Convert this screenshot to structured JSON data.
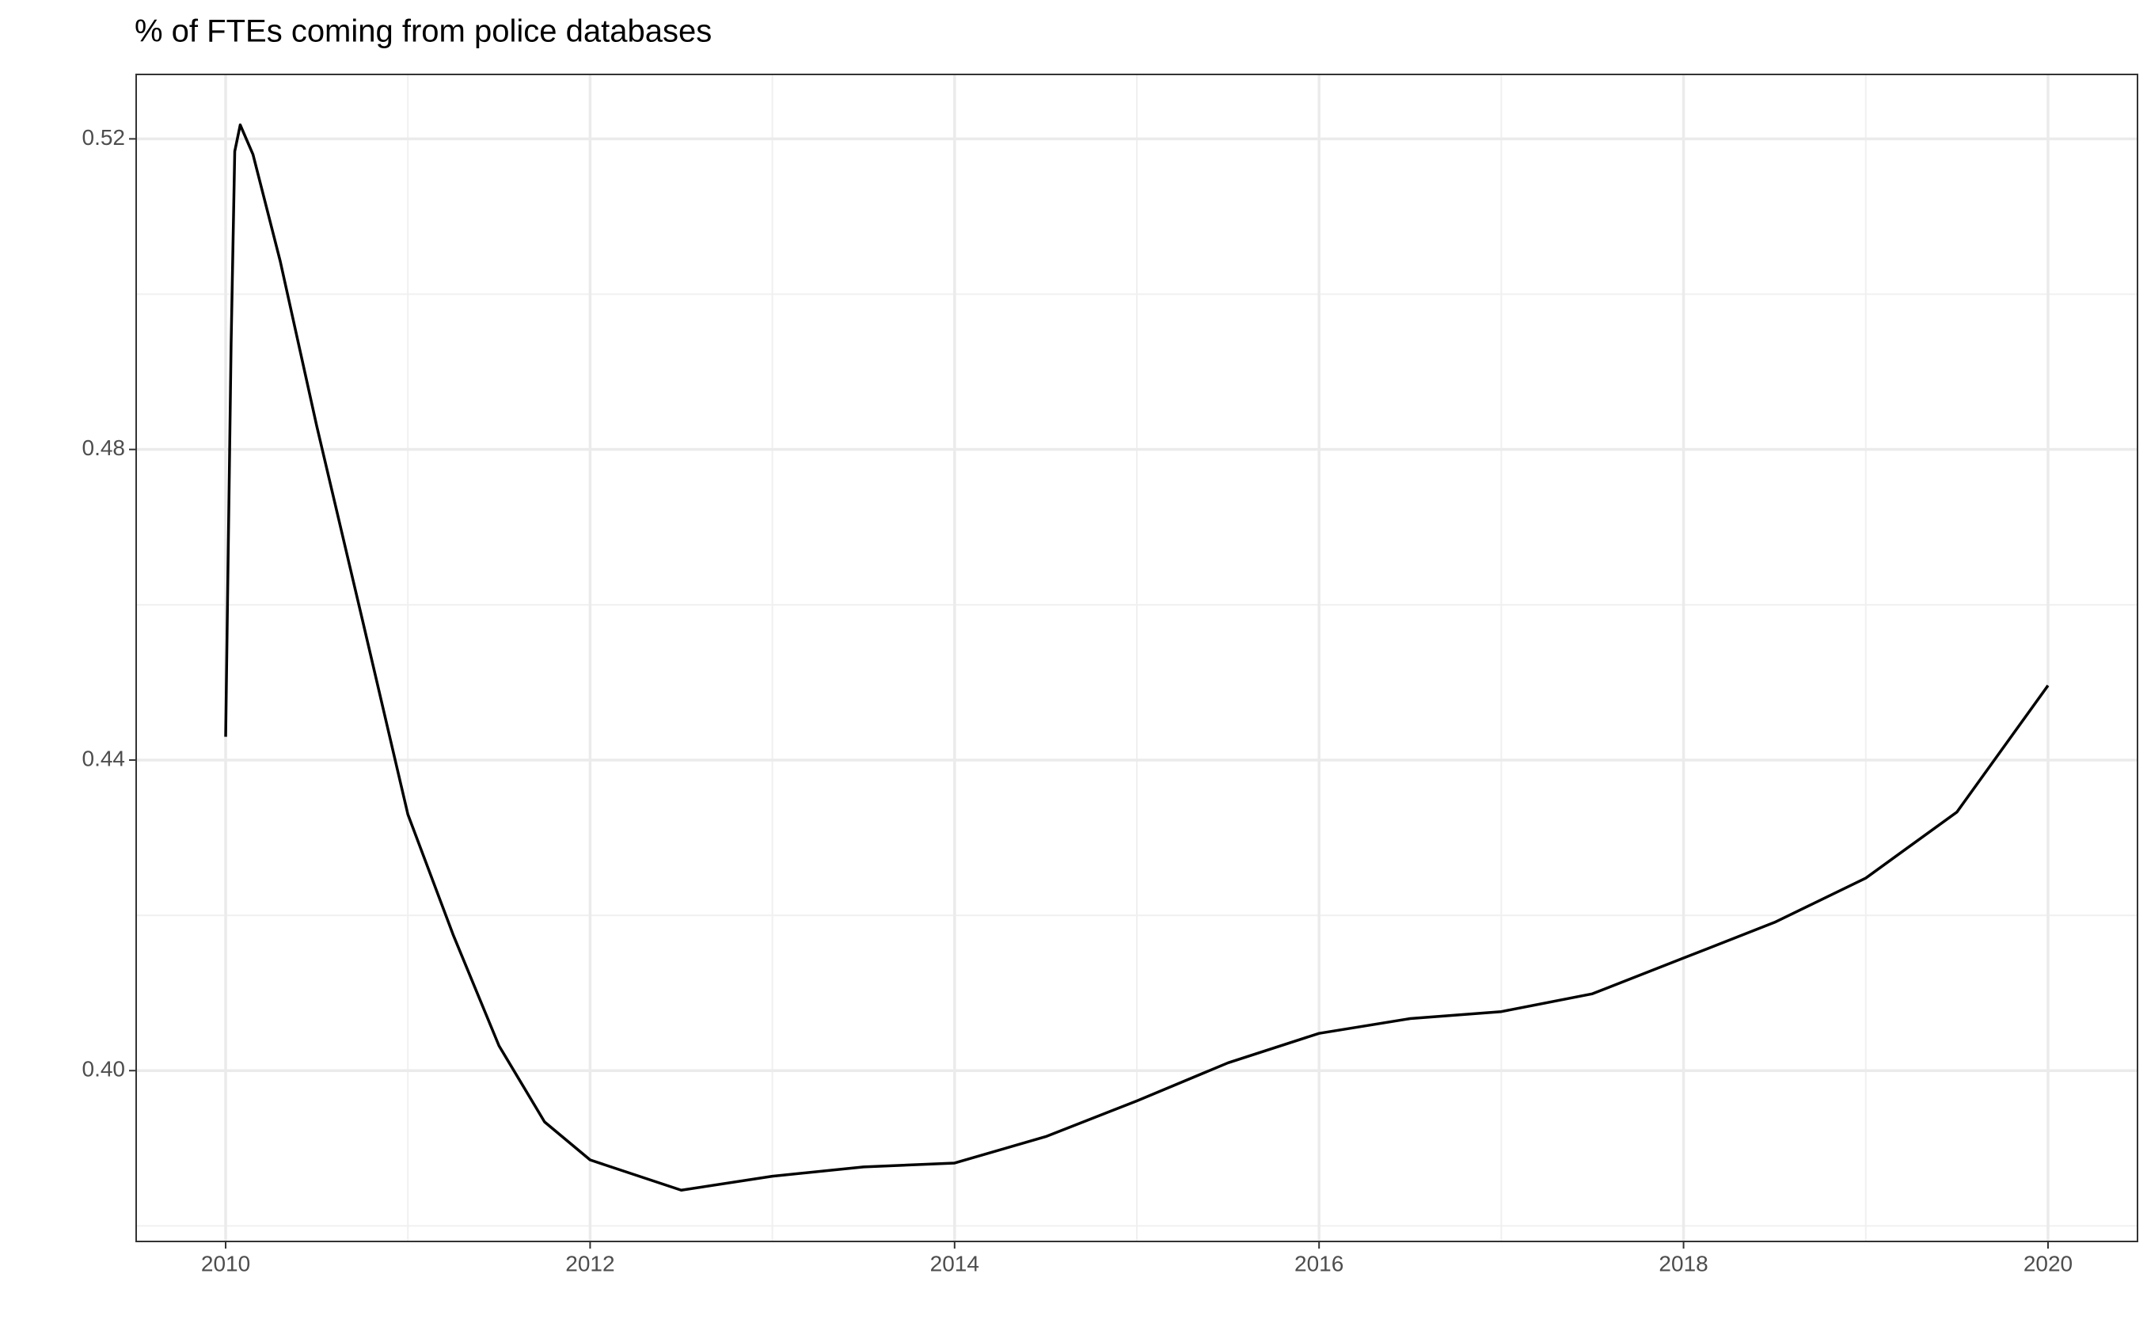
{
  "chart_data": {
    "type": "line",
    "title": "% of FTEs coming from police databases",
    "x": [
      2010.0,
      2010.03,
      2010.05,
      2010.08,
      2010.15,
      2010.3,
      2010.5,
      2010.75,
      2011.0,
      2011.25,
      2011.5,
      2011.75,
      2012.0,
      2012.5,
      2013.0,
      2013.5,
      2014.0,
      2014.5,
      2015.0,
      2015.5,
      2016.0,
      2016.5,
      2017.0,
      2017.5,
      2018.0,
      2018.5,
      2019.0,
      2019.5,
      2020.0
    ],
    "series": [
      {
        "name": "police",
        "color": "#000000",
        "values": [
          0.443,
          0.4936,
          0.5184,
          0.5218,
          0.518,
          0.5042,
          0.483,
          0.4581,
          0.433,
          0.4174,
          0.4032,
          0.3934,
          0.3885,
          0.3846,
          0.3864,
          0.3876,
          0.3881,
          0.3915,
          0.3961,
          0.401,
          0.4048,
          0.4067,
          0.4076,
          0.4099,
          0.4145,
          0.4191,
          0.4248,
          0.4333,
          0.4496
        ]
      }
    ],
    "xlim": [
      2009.509,
      2020.491
    ],
    "ylim": [
      0.378,
      0.5283
    ],
    "xticks": [
      2010,
      2012,
      2014,
      2016,
      2018,
      2020
    ],
    "yticks": [
      {
        "value": 0.4,
        "label": "0.40"
      },
      {
        "value": 0.44,
        "label": "0.44"
      },
      {
        "value": 0.48,
        "label": "0.48"
      },
      {
        "value": 0.52,
        "label": "0.52"
      }
    ],
    "x_minor_ticks": [
      2011,
      2013,
      2015,
      2017,
      2019
    ],
    "y_minor_ticks": [
      0.38,
      0.42,
      0.46,
      0.5
    ],
    "grid": true
  }
}
